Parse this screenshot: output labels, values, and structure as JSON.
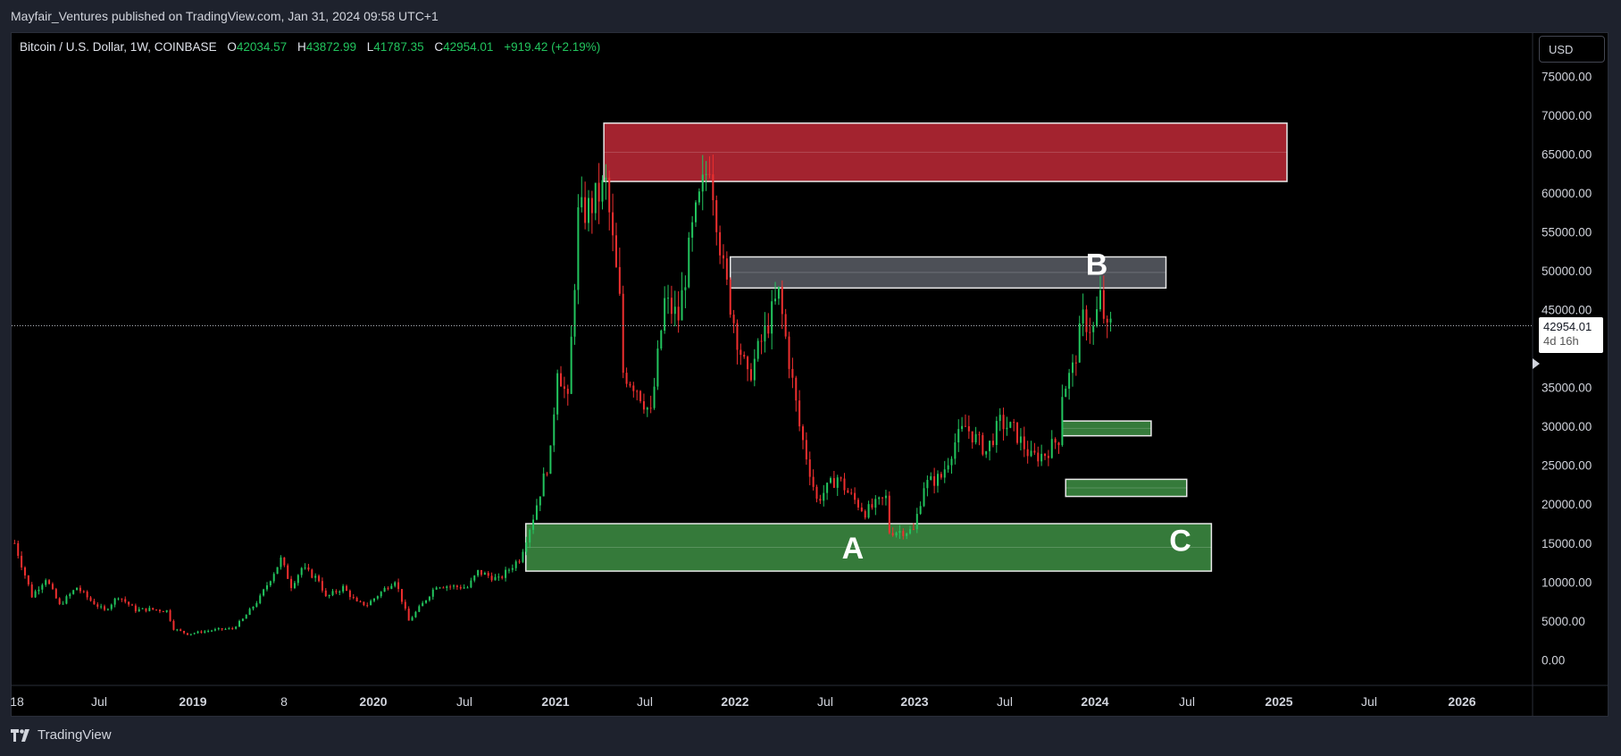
{
  "header": {
    "publisher_line": "Mayfair_Ventures published on TradingView.com, Jan 31, 2024 09:58 UTC+1"
  },
  "legend": {
    "symbol": "Bitcoin / U.S. Dollar, 1W, COINBASE",
    "open_label": "O",
    "open": "42034.57",
    "high_label": "H",
    "high": "43872.99",
    "low_label": "L",
    "low": "41787.35",
    "close_label": "C",
    "close": "42954.01",
    "change": "+919.42 (+2.19%)"
  },
  "toolbar": {
    "currency": "USD"
  },
  "price_tag": {
    "price": "42954.01",
    "countdown": "4d 16h"
  },
  "footer": {
    "brand": "TradingView"
  },
  "colors": {
    "up": "#22c55e",
    "down": "#ef2f2f",
    "resistance_zone": "#a3232f",
    "mid_zone": "#4d5057",
    "support_zone": "#357a3a"
  },
  "chart_data": {
    "type": "candlestick",
    "symbol": "Bitcoin / U.S. Dollar",
    "interval": "1W",
    "y_ticks": [
      "75000.00",
      "70000.00",
      "65000.00",
      "60000.00",
      "55000.00",
      "50000.00",
      "45000.00",
      "40000.00",
      "35000.00",
      "30000.00",
      "25000.00",
      "20000.00",
      "15000.00",
      "10000.00",
      "5000.00",
      "0.00"
    ],
    "x_ticks": [
      "18",
      "Jul",
      "2019",
      "8",
      "2020",
      "Jul",
      "2021",
      "Jul",
      "2022",
      "Jul",
      "2023",
      "Jul",
      "2024",
      "Jul",
      "2025",
      "Jul",
      "2026"
    ],
    "ylim": [
      -5000,
      80000
    ],
    "current_price": 42954.01,
    "annotations": [
      {
        "label": "A",
        "date": "2022-08-25",
        "price": 14500
      },
      {
        "label": "B",
        "date": "2024-01-01",
        "price": 51000
      },
      {
        "label": "C",
        "date": "2024-06-18",
        "price": 15500
      }
    ],
    "zones": [
      {
        "kind": "resistance",
        "start": "2021-04-08",
        "end": "2025-01-20",
        "low": 61500,
        "high": 69000
      },
      {
        "kind": "mid",
        "start": "2021-12-20",
        "end": "2024-05-20",
        "low": 47800,
        "high": 51800
      },
      {
        "kind": "support",
        "start": "2023-10-23",
        "end": "2024-04-20",
        "low": 28800,
        "high": 30700
      },
      {
        "kind": "support",
        "start": "2023-10-30",
        "end": "2024-07-01",
        "low": 21000,
        "high": 23200
      },
      {
        "kind": "support",
        "start": "2020-11-01",
        "end": "2024-08-20",
        "low": 11400,
        "high": 17500
      }
    ],
    "series": [
      {
        "date": "2018-01-01",
        "close": 15000
      },
      {
        "date": "2018-02-05",
        "close": 8200
      },
      {
        "date": "2018-03-05",
        "close": 10500
      },
      {
        "date": "2018-04-02",
        "close": 7000
      },
      {
        "date": "2018-05-07",
        "close": 9300
      },
      {
        "date": "2018-06-04",
        "close": 7600
      },
      {
        "date": "2018-07-02",
        "close": 6300
      },
      {
        "date": "2018-07-30",
        "close": 8200
      },
      {
        "date": "2018-09-03",
        "close": 6400
      },
      {
        "date": "2018-10-01",
        "close": 6500
      },
      {
        "date": "2018-11-05",
        "close": 6300
      },
      {
        "date": "2018-11-19",
        "close": 4000
      },
      {
        "date": "2018-12-17",
        "close": 3300
      },
      {
        "date": "2019-01-14",
        "close": 3600
      },
      {
        "date": "2019-02-18",
        "close": 3900
      },
      {
        "date": "2019-03-18",
        "close": 4000
      },
      {
        "date": "2019-04-08",
        "close": 5200
      },
      {
        "date": "2019-05-13",
        "close": 8000
      },
      {
        "date": "2019-06-24",
        "close": 12900
      },
      {
        "date": "2019-07-15",
        "close": 9500
      },
      {
        "date": "2019-08-05",
        "close": 11800
      },
      {
        "date": "2019-09-09",
        "close": 10300
      },
      {
        "date": "2019-09-23",
        "close": 8000
      },
      {
        "date": "2019-10-28",
        "close": 9300
      },
      {
        "date": "2019-11-25",
        "close": 7300
      },
      {
        "date": "2019-12-16",
        "close": 7100
      },
      {
        "date": "2020-01-13",
        "close": 8700
      },
      {
        "date": "2020-02-10",
        "close": 10300
      },
      {
        "date": "2020-03-09",
        "close": 5000
      },
      {
        "date": "2020-04-06",
        "close": 7200
      },
      {
        "date": "2020-05-04",
        "close": 9600
      },
      {
        "date": "2020-06-08",
        "close": 9400
      },
      {
        "date": "2020-07-06",
        "close": 9300
      },
      {
        "date": "2020-07-27",
        "close": 11300
      },
      {
        "date": "2020-09-07",
        "close": 10300
      },
      {
        "date": "2020-10-19",
        "close": 13000
      },
      {
        "date": "2020-11-16",
        "close": 18400
      },
      {
        "date": "2020-12-21",
        "close": 26500
      },
      {
        "date": "2021-01-04",
        "close": 38000
      },
      {
        "date": "2021-01-25",
        "close": 33000
      },
      {
        "date": "2021-02-15",
        "close": 57000
      },
      {
        "date": "2021-03-08",
        "close": 58000
      },
      {
        "date": "2021-04-12",
        "close": 61000
      },
      {
        "date": "2021-05-10",
        "close": 46000
      },
      {
        "date": "2021-05-17",
        "close": 37000
      },
      {
        "date": "2021-06-14",
        "close": 35000
      },
      {
        "date": "2021-07-12",
        "close": 31500
      },
      {
        "date": "2021-08-09",
        "close": 46000
      },
      {
        "date": "2021-09-06",
        "close": 44000
      },
      {
        "date": "2021-10-04",
        "close": 55000
      },
      {
        "date": "2021-11-08",
        "close": 64500
      },
      {
        "date": "2021-12-06",
        "close": 50000
      },
      {
        "date": "2022-01-03",
        "close": 41500
      },
      {
        "date": "2022-01-24",
        "close": 36000
      },
      {
        "date": "2022-03-28",
        "close": 47000
      },
      {
        "date": "2022-05-09",
        "close": 30000
      },
      {
        "date": "2022-06-13",
        "close": 20500
      },
      {
        "date": "2022-07-25",
        "close": 23500
      },
      {
        "date": "2022-08-15",
        "close": 21500
      },
      {
        "date": "2022-09-19",
        "close": 19000
      },
      {
        "date": "2022-10-31",
        "close": 20800
      },
      {
        "date": "2022-11-07",
        "close": 16500
      },
      {
        "date": "2022-12-26",
        "close": 16600
      },
      {
        "date": "2023-01-16",
        "close": 22500
      },
      {
        "date": "2023-02-20",
        "close": 23500
      },
      {
        "date": "2023-03-20",
        "close": 28000
      },
      {
        "date": "2023-04-10",
        "close": 30000
      },
      {
        "date": "2023-05-22",
        "close": 26800
      },
      {
        "date": "2023-06-19",
        "close": 30500
      },
      {
        "date": "2023-07-17",
        "close": 29500
      },
      {
        "date": "2023-08-21",
        "close": 26000
      },
      {
        "date": "2023-09-18",
        "close": 26500
      },
      {
        "date": "2023-10-16",
        "close": 28500
      },
      {
        "date": "2023-10-23",
        "close": 34500
      },
      {
        "date": "2023-11-13",
        "close": 37300
      },
      {
        "date": "2023-12-04",
        "close": 43800
      },
      {
        "date": "2023-12-25",
        "close": 42500
      },
      {
        "date": "2024-01-08",
        "close": 46500
      },
      {
        "date": "2024-01-22",
        "close": 42000
      },
      {
        "date": "2024-01-29",
        "close": 42954
      }
    ]
  }
}
